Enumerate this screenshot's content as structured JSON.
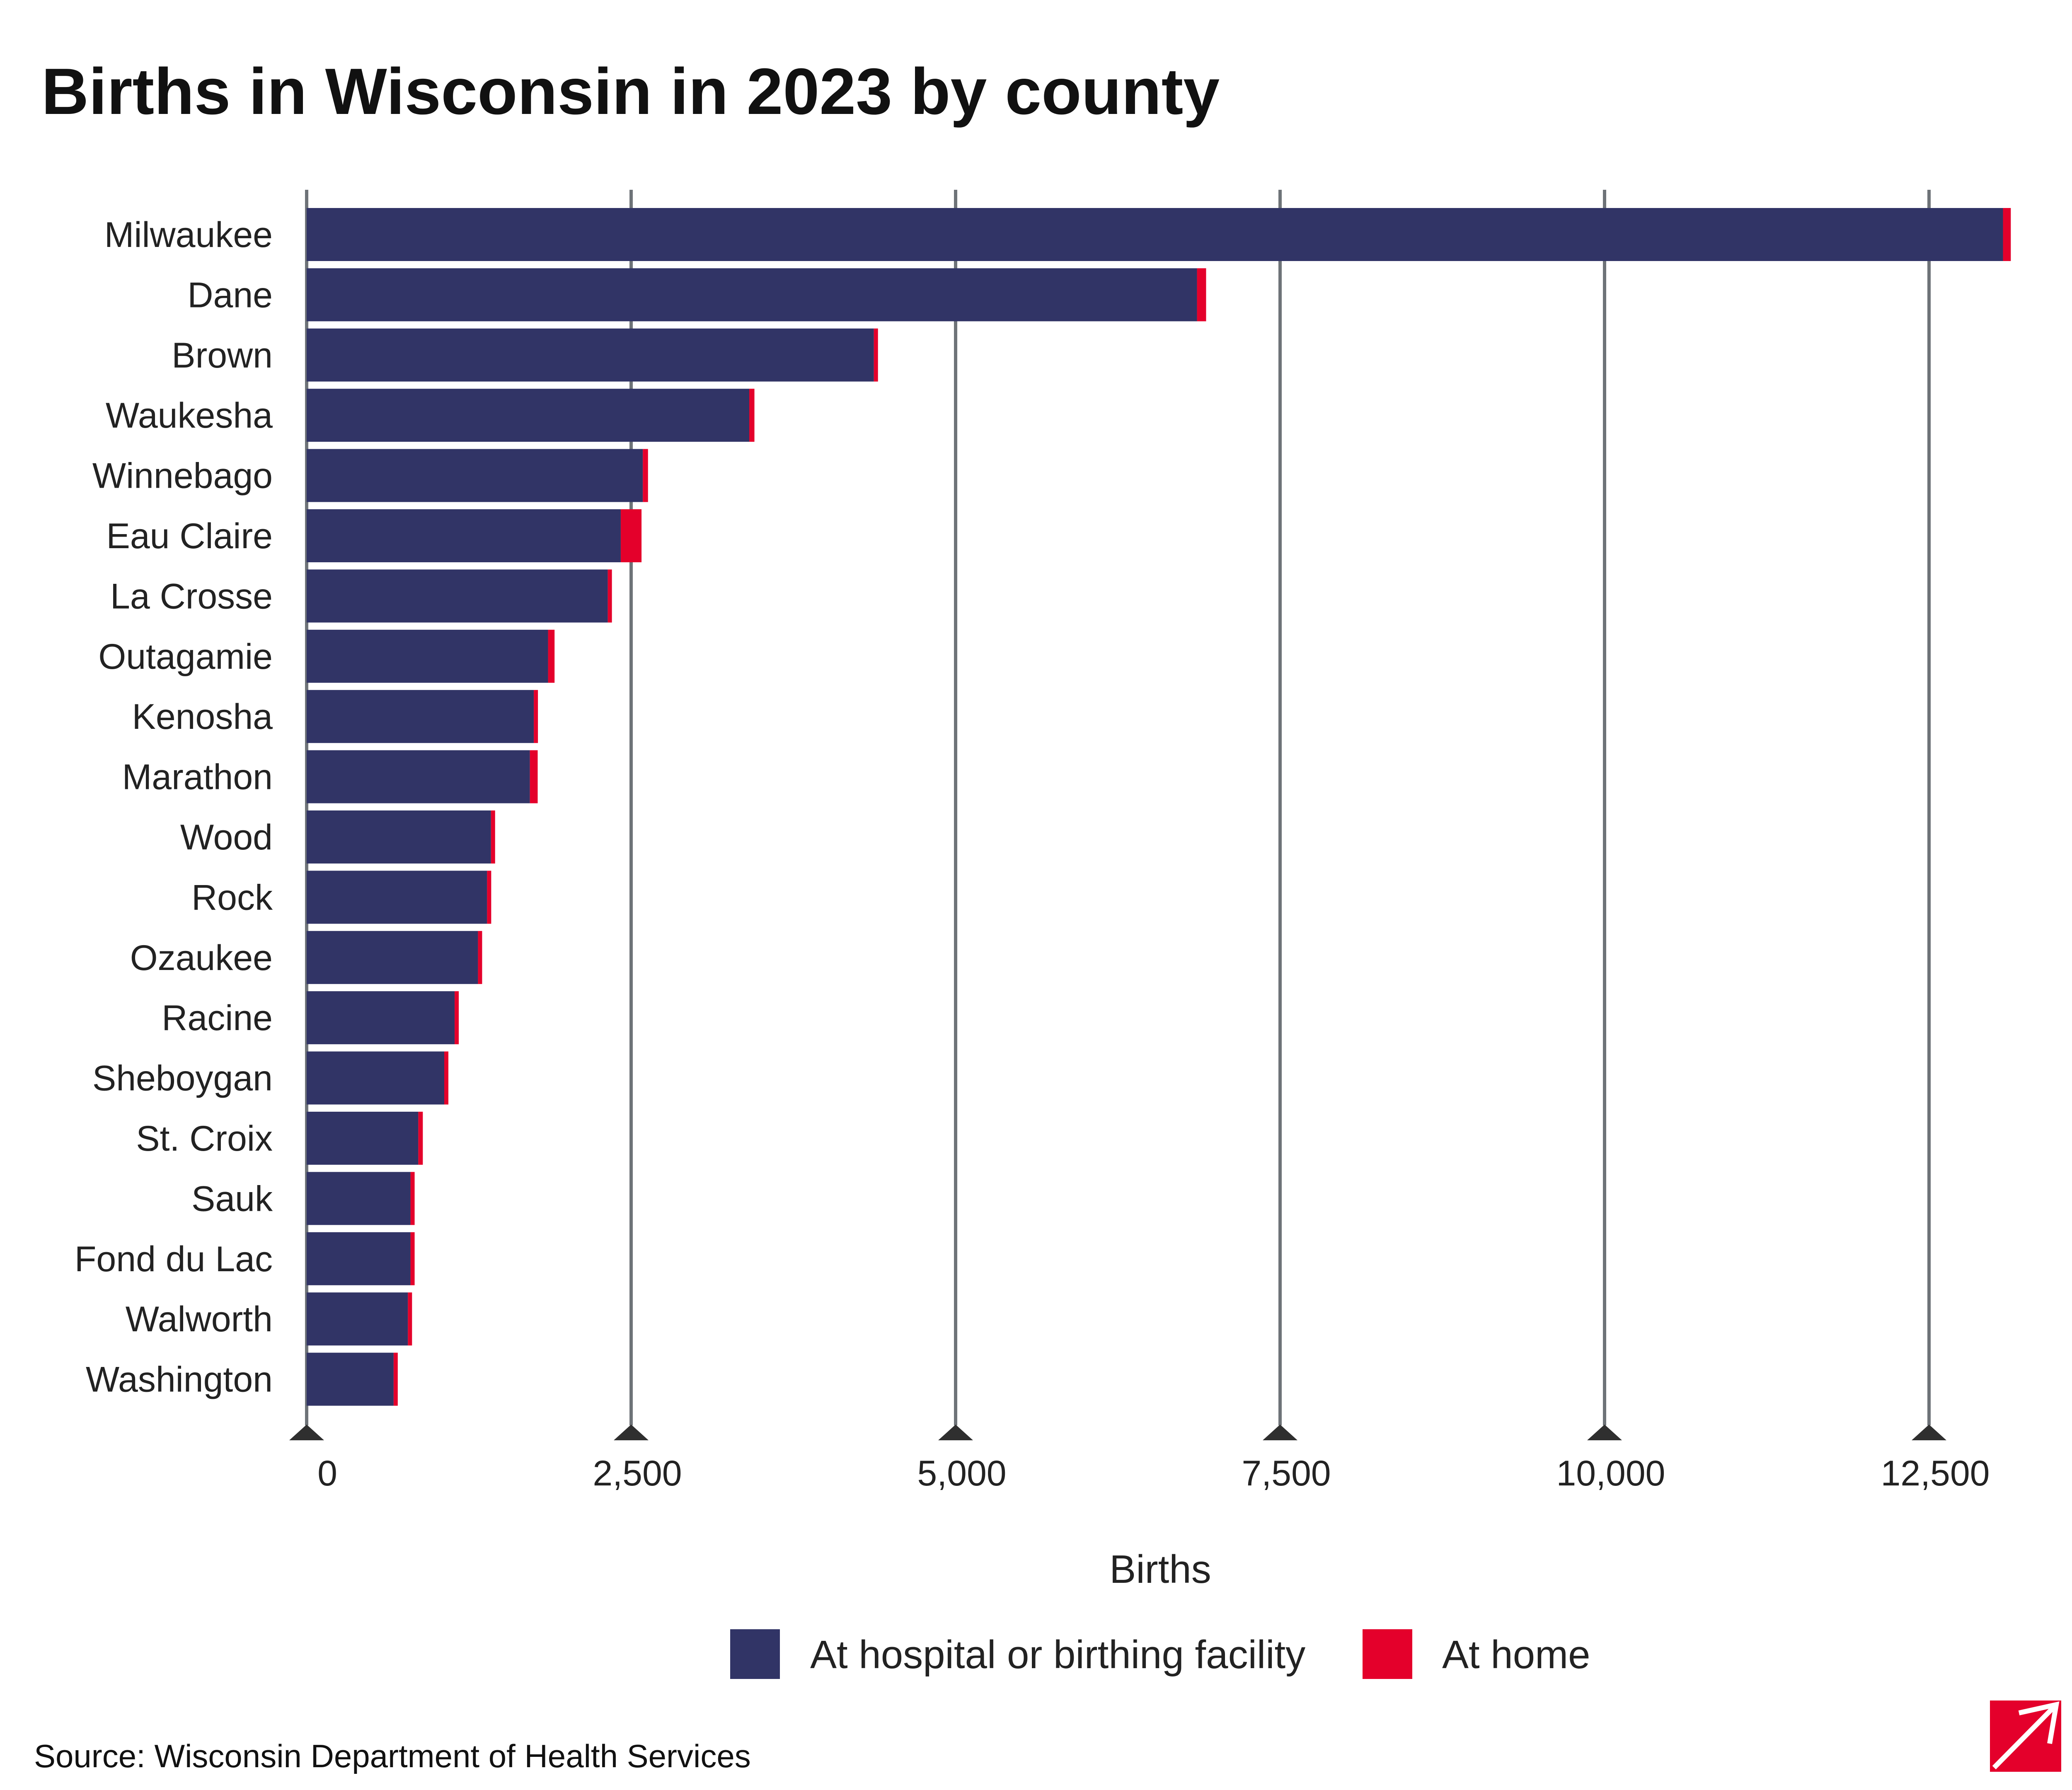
{
  "chart_data": {
    "type": "bar",
    "orientation": "horizontal",
    "stacked": true,
    "title": "Births in Wisconsin in 2023 by county",
    "xlabel": "Births",
    "ylabel": "",
    "xlim": [
      0,
      13200
    ],
    "x_ticks": [
      0,
      2500,
      5000,
      7500,
      10000,
      12500
    ],
    "x_tick_labels": [
      "0",
      "2,500",
      "5,000",
      "7,500",
      "10,000",
      "12,500"
    ],
    "grid": "vertical",
    "legend_position": "bottom",
    "categories": [
      "Milwaukee",
      "Dane",
      "Brown",
      "Waukesha",
      "Winnebago",
      "Eau Claire",
      "La Crosse",
      "Outagamie",
      "Kenosha",
      "Marathon",
      "Wood",
      "Rock",
      "Ozaukee",
      "Racine",
      "Sheboygan",
      "St. Croix",
      "Sauk",
      "Fond du Lac",
      "Walworth",
      "Washington"
    ],
    "series": [
      {
        "name": "At hospital or birthing facility",
        "color": "#313466",
        "values": [
          13070,
          6860,
          4370,
          3410,
          2590,
          2420,
          2320,
          1860,
          1750,
          1720,
          1420,
          1390,
          1320,
          1140,
          1060,
          860,
          800,
          800,
          780,
          670
        ]
      },
      {
        "name": "At home",
        "color": "#e4002b",
        "values": [
          60,
          70,
          25,
          40,
          40,
          160,
          30,
          50,
          25,
          60,
          25,
          25,
          25,
          25,
          25,
          35,
          25,
          25,
          25,
          25
        ]
      }
    ],
    "source": "Source: Wisconsin Department of Health Services"
  },
  "colors": {
    "gridline": "#6e7378",
    "tick_marker": "#2f2f2f",
    "logo_red": "#e4002b"
  },
  "icons": {
    "logo": "forum-logo-icon"
  }
}
